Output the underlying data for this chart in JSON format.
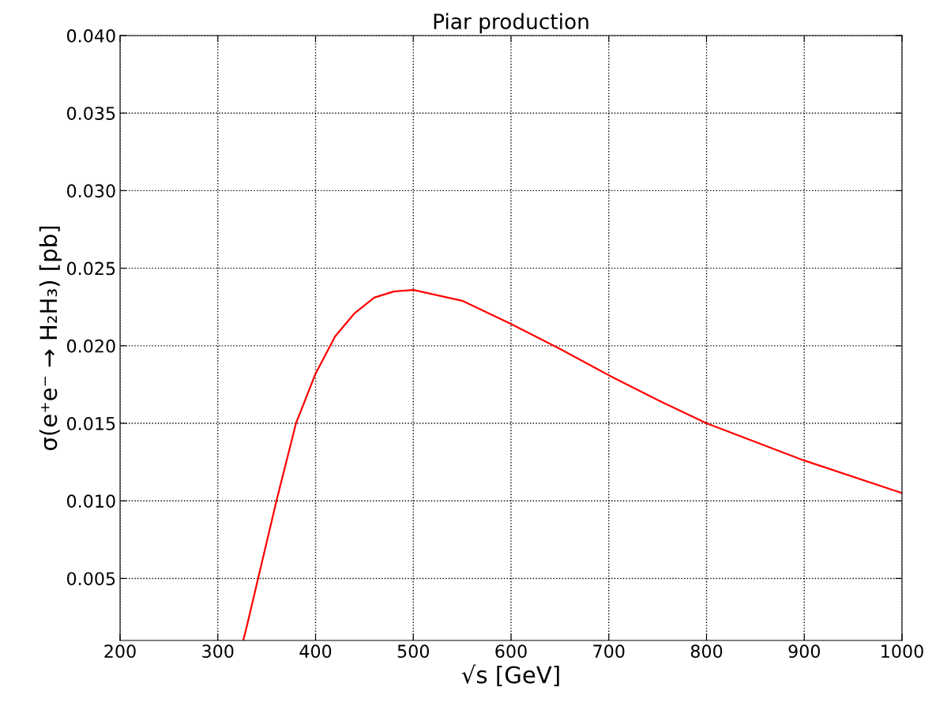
{
  "chart_data": {
    "type": "line",
    "title": "Piar production",
    "xlabel": "√s [GeV]",
    "ylabel": "σ(e⁺e⁻ → H₂H₃) [pb]",
    "x": [
      326,
      330,
      360,
      380,
      400,
      420,
      440,
      460,
      480,
      500,
      550,
      600,
      650,
      700,
      750,
      800,
      900,
      1000
    ],
    "series": [
      {
        "color": "#ff0000",
        "values": [
          0.001,
          0.002,
          0.01,
          0.015,
          0.0182,
          0.0206,
          0.0221,
          0.0231,
          0.0235,
          0.0236,
          0.0229,
          0.0214,
          0.0198,
          0.0181,
          0.0165,
          0.015,
          0.0126,
          0.0105
        ]
      }
    ],
    "xlim": [
      200,
      1000
    ],
    "xticks": [
      200,
      300,
      400,
      500,
      600,
      700,
      800,
      900,
      1000
    ],
    "ylim": [
      0.001,
      0.04
    ],
    "yticks": [
      {
        "value": 0.005,
        "label": "0.005"
      },
      {
        "value": 0.01,
        "label": "0.010"
      },
      {
        "value": 0.015,
        "label": "0.015"
      },
      {
        "value": 0.02,
        "label": "0.020"
      },
      {
        "value": 0.025,
        "label": "0.025"
      },
      {
        "value": 0.03,
        "label": "0.030"
      },
      {
        "value": 0.035,
        "label": "0.035"
      },
      {
        "value": 0.04,
        "label": "0.040"
      }
    ],
    "grid": true,
    "legend": false,
    "marker": "none",
    "line_style": "solid"
  }
}
